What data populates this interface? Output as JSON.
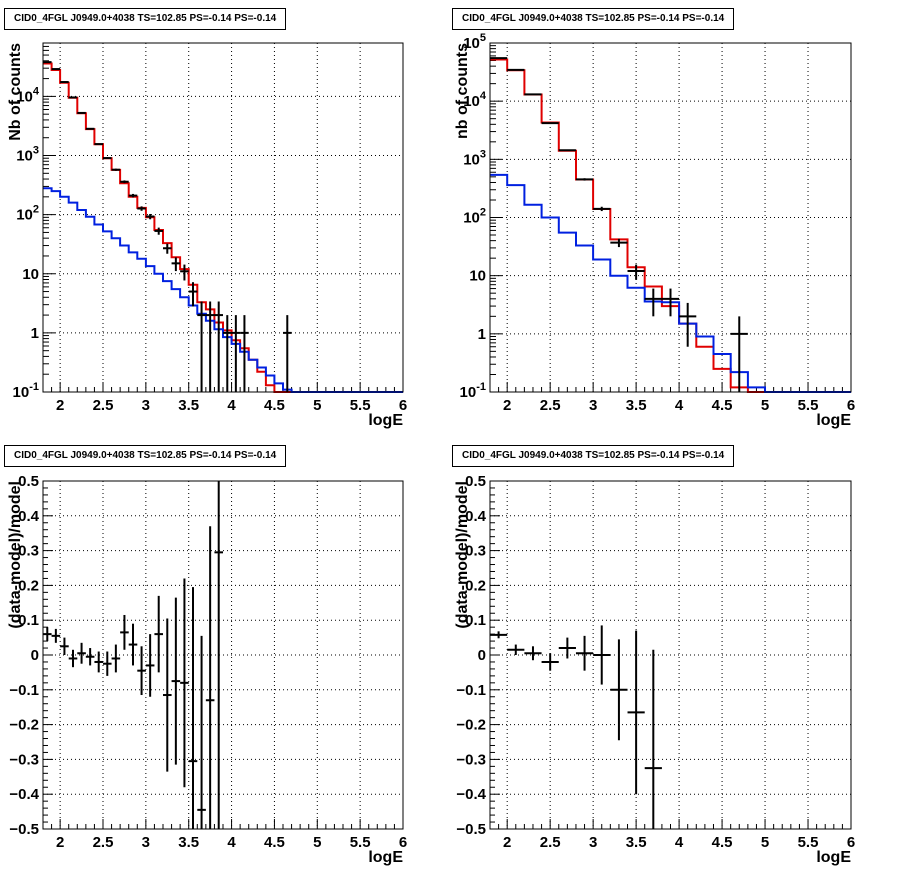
{
  "colors": {
    "data": "#000000",
    "total_model": "#e00000",
    "component_model": "#0020e0",
    "grid": "#000000"
  },
  "chart_data": [
    {
      "type": "line",
      "title": "CID0_4FGL J0949.0+4038 TS=102.85 PS=-0.14 PS=-0.14",
      "xlabel": "logE",
      "ylabel": "Nb of counts",
      "xscale": "linear",
      "yscale": "log",
      "xlim": [
        1.8,
        6.0
      ],
      "ylim": [
        0.1,
        80000
      ],
      "xticks": [
        "2",
        "2.5",
        "3",
        "3.5",
        "4",
        "4.5",
        "5",
        "5.5",
        "6"
      ],
      "yticks": [
        "10^-1",
        "1",
        "10",
        "10^2",
        "10^3",
        "10^4"
      ],
      "grid": true,
      "series": [
        {
          "kind": "step",
          "role": "total_model",
          "bin_edges": [
            1.8,
            1.9,
            2.0,
            2.1,
            2.2,
            2.3,
            2.4,
            2.5,
            2.6,
            2.7,
            2.8,
            2.9,
            3.0,
            3.1,
            3.2,
            3.3,
            3.4,
            3.5,
            3.6,
            3.7,
            3.8,
            3.9,
            4.0,
            4.1,
            4.2,
            4.3,
            4.4,
            4.5,
            4.6,
            4.7,
            4.8,
            4.9,
            5.0,
            5.1,
            5.2,
            5.3,
            5.4,
            5.5,
            5.6,
            5.7,
            5.8,
            5.9,
            6.0
          ],
          "values": [
            36000,
            28000,
            17000,
            9500,
            5200,
            2800,
            1550,
            900,
            570,
            340,
            200,
            130,
            90,
            55,
            33,
            19,
            12,
            6.5,
            3.3,
            2.5,
            1.5,
            1.1,
            0.75,
            0.55,
            0.35,
            0.22,
            0.13,
            0.1,
            0.1,
            0.1,
            0.1,
            0.1,
            0.1,
            0.1,
            0.1,
            0.1,
            0.1,
            0.1,
            0.1,
            0.1,
            0.1,
            0.1
          ]
        },
        {
          "kind": "step",
          "role": "component_model",
          "bin_edges": [
            1.8,
            1.9,
            2.0,
            2.1,
            2.2,
            2.3,
            2.4,
            2.5,
            2.6,
            2.7,
            2.8,
            2.9,
            3.0,
            3.1,
            3.2,
            3.3,
            3.4,
            3.5,
            3.6,
            3.7,
            3.8,
            3.9,
            4.0,
            4.1,
            4.2,
            4.3,
            4.4,
            4.5,
            4.6,
            4.7,
            4.8,
            4.9,
            5.0,
            5.1,
            5.2,
            5.3,
            5.4,
            5.5,
            5.6,
            5.7,
            5.8,
            5.9,
            6.0
          ],
          "values": [
            280,
            250,
            200,
            160,
            120,
            92,
            68,
            52,
            40,
            30,
            23,
            18,
            13.5,
            10,
            7.5,
            5.5,
            4.0,
            2.9,
            2.1,
            1.6,
            1.15,
            0.85,
            0.65,
            0.48,
            0.35,
            0.26,
            0.19,
            0.14,
            0.11,
            0.1,
            0.1,
            0.1,
            0.1,
            0.1,
            0.1,
            0.1,
            0.1,
            0.1,
            0.1,
            0.1,
            0.1,
            0.1
          ]
        },
        {
          "kind": "points",
          "role": "data",
          "x": [
            1.85,
            1.95,
            2.05,
            2.15,
            2.25,
            2.35,
            2.45,
            2.55,
            2.65,
            2.75,
            2.85,
            2.95,
            3.05,
            3.15,
            3.25,
            3.35,
            3.45,
            3.55,
            3.65,
            3.75,
            3.85,
            3.95,
            4.05,
            4.15,
            4.65
          ],
          "y": [
            38000,
            29000,
            17500,
            9600,
            5250,
            2830,
            1560,
            905,
            575,
            360,
            210,
            127,
            93,
            53,
            27,
            15,
            11,
            5,
            2,
            2,
            2,
            1,
            1,
            1,
            1
          ],
          "yerr_low": [
            195,
            170,
            132,
            98,
            72,
            53,
            39,
            30,
            24,
            19,
            14,
            11,
            9.6,
            7.3,
            5.2,
            3.9,
            3.3,
            2.2,
            1.9,
            1.9,
            1.9,
            0.95,
            0.95,
            0.95,
            0.95
          ],
          "yerr_high": [
            195,
            170,
            132,
            98,
            72,
            53,
            39,
            30,
            24,
            19,
            14,
            11,
            9.6,
            7.3,
            5.2,
            3.9,
            3.3,
            2.2,
            1.4,
            1.4,
            1.4,
            1.0,
            1.0,
            1.0,
            1.0
          ],
          "xerr": 0.05
        }
      ]
    },
    {
      "type": "line",
      "title": "CID0_4FGL J0949.0+4038 TS=102.85 PS=-0.14 PS=-0.14",
      "xlabel": "logE",
      "ylabel": "nb of counts",
      "xscale": "linear",
      "yscale": "log",
      "xlim": [
        1.8,
        6.0
      ],
      "ylim": [
        0.1,
        100000
      ],
      "xticks": [
        "2",
        "2.5",
        "3",
        "3.5",
        "4",
        "4.5",
        "5",
        "5.5",
        "6"
      ],
      "yticks": [
        "10^-1",
        "1",
        "10",
        "10^2",
        "10^3",
        "10^4",
        "10^5"
      ],
      "grid": true,
      "series": [
        {
          "kind": "step",
          "role": "total_model",
          "bin_edges": [
            1.8,
            2.0,
            2.2,
            2.4,
            2.6,
            2.8,
            3.0,
            3.2,
            3.4,
            3.6,
            3.8,
            4.0,
            4.2,
            4.4,
            4.6,
            4.8,
            5.0,
            5.2,
            5.4,
            5.6,
            5.8,
            6.0
          ],
          "values": [
            52000,
            34000,
            13000,
            4300,
            1400,
            450,
            140,
            42,
            14,
            6.5,
            3.0,
            1.5,
            0.6,
            0.25,
            0.12,
            0.1,
            0.1,
            0.1,
            0.1,
            0.1,
            0.1
          ]
        },
        {
          "kind": "step",
          "role": "component_model",
          "bin_edges": [
            1.8,
            2.0,
            2.2,
            2.4,
            2.6,
            2.8,
            3.0,
            3.2,
            3.4,
            3.6,
            3.8,
            4.0,
            4.2,
            4.4,
            4.6,
            4.8,
            5.0,
            5.2,
            5.4,
            5.6,
            5.8,
            6.0
          ],
          "values": [
            540,
            360,
            165,
            100,
            55,
            33,
            19,
            10,
            6.2,
            3.6,
            3.5,
            1.5,
            0.9,
            0.45,
            0.22,
            0.12,
            0.1,
            0.1,
            0.1,
            0.1,
            0.1
          ]
        },
        {
          "kind": "points",
          "role": "data",
          "x": [
            1.9,
            2.1,
            2.3,
            2.5,
            2.7,
            2.9,
            3.1,
            3.3,
            3.5,
            3.7,
            3.9,
            4.1,
            4.7
          ],
          "y": [
            55000,
            34500,
            13100,
            4200,
            1430,
            452,
            141,
            37,
            12,
            4,
            4,
            2,
            1
          ],
          "yerr_low": [
            235,
            186,
            114,
            65,
            38,
            21,
            12,
            6,
            3.5,
            2,
            2,
            1.4,
            0.95
          ],
          "yerr_high": [
            235,
            186,
            114,
            65,
            38,
            21,
            12,
            6,
            3.5,
            2,
            2,
            1.4,
            1.0
          ],
          "xerr": 0.1
        }
      ]
    },
    {
      "type": "scatter",
      "title": "CID0_4FGL J0949.0+4038 TS=102.85 PS=-0.14 PS=-0.14",
      "xlabel": "logE",
      "ylabel": "(data-model)/model",
      "xscale": "linear",
      "yscale": "linear",
      "xlim": [
        1.8,
        6.0
      ],
      "ylim": [
        -0.5,
        0.5
      ],
      "xticks": [
        "2",
        "2.5",
        "3",
        "3.5",
        "4",
        "4.5",
        "5",
        "5.5",
        "6"
      ],
      "yticks": [
        "-0.5",
        "-0.4",
        "-0.3",
        "-0.2",
        "-0.1",
        "0",
        "0.1",
        "0.2",
        "0.3",
        "0.4",
        "0.5"
      ],
      "grid": true,
      "series": [
        {
          "kind": "points",
          "role": "data",
          "x": [
            1.85,
            1.95,
            2.05,
            2.15,
            2.25,
            2.35,
            2.45,
            2.55,
            2.65,
            2.75,
            2.85,
            2.95,
            3.05,
            3.15,
            3.25,
            3.35,
            3.45,
            3.55,
            3.65,
            3.75,
            3.85
          ],
          "y": [
            0.06,
            0.055,
            0.025,
            -0.01,
            0.005,
            -0.005,
            -0.02,
            -0.025,
            -0.01,
            0.065,
            0.03,
            -0.045,
            -0.03,
            0.06,
            -0.115,
            -0.075,
            -0.08,
            -0.305,
            -0.445,
            -0.13,
            0.295
          ],
          "yerr_low": [
            0.02,
            0.02,
            0.025,
            0.025,
            0.03,
            0.025,
            0.03,
            0.035,
            0.04,
            0.05,
            0.06,
            0.07,
            0.09,
            0.11,
            0.22,
            0.24,
            0.3,
            0.5,
            0.5,
            0.5,
            0.8
          ],
          "yerr_high": [
            0.02,
            0.02,
            0.025,
            0.025,
            0.03,
            0.025,
            0.03,
            0.035,
            0.04,
            0.05,
            0.06,
            0.07,
            0.09,
            0.11,
            0.22,
            0.24,
            0.3,
            0.5,
            0.5,
            0.5,
            0.8
          ],
          "xerr": 0.05
        }
      ]
    },
    {
      "type": "scatter",
      "title": "CID0_4FGL J0949.0+4038 TS=102.85 PS=-0.14 PS=-0.14",
      "xlabel": "logE",
      "ylabel": "(data-model)/model",
      "xscale": "linear",
      "yscale": "linear",
      "xlim": [
        1.8,
        6.0
      ],
      "ylim": [
        -0.5,
        0.5
      ],
      "xticks": [
        "2",
        "2.5",
        "3",
        "3.5",
        "4",
        "4.5",
        "5",
        "5.5",
        "6"
      ],
      "yticks": [
        "-0.5",
        "-0.4",
        "-0.3",
        "-0.2",
        "-0.1",
        "0",
        "0.1",
        "0.2",
        "0.3",
        "0.4",
        "0.5"
      ],
      "grid": true,
      "series": [
        {
          "kind": "points",
          "role": "data",
          "x": [
            1.9,
            2.1,
            2.3,
            2.5,
            2.7,
            2.9,
            3.1,
            3.3,
            3.5,
            3.7
          ],
          "y": [
            0.058,
            0.015,
            0.005,
            -0.02,
            0.02,
            0.005,
            0.0,
            -0.1,
            -0.165,
            -0.325
          ],
          "yerr_low": [
            0.01,
            0.015,
            0.02,
            0.025,
            0.03,
            0.05,
            0.085,
            0.145,
            0.235,
            0.5
          ],
          "yerr_high": [
            0.01,
            0.015,
            0.02,
            0.025,
            0.03,
            0.05,
            0.085,
            0.145,
            0.235,
            0.34
          ],
          "xerr": 0.1
        }
      ]
    }
  ]
}
